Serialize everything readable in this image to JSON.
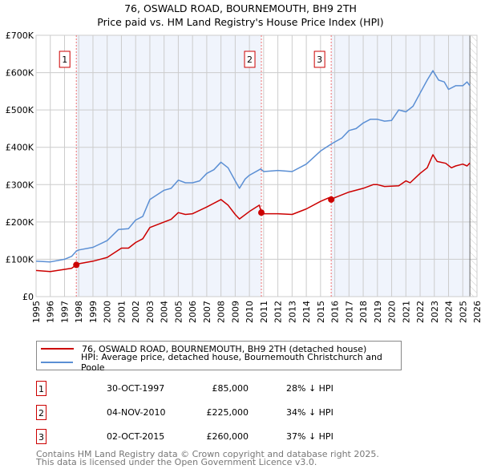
{
  "title_line1": "76, OSWALD ROAD, BOURNEMOUTH, BH9 2TH",
  "title_line2": "Price paid vs. HM Land Registry's House Price Index (HPI)",
  "chart_data": {
    "type": "line",
    "title": "76, OSWALD ROAD, BOURNEMOUTH, BH9 2TH — Price paid vs. HM Land Registry's House Price Index (HPI)",
    "xlim": [
      1995,
      2026
    ],
    "ylim": [
      0,
      700000
    ],
    "x_ticks": [
      "1995",
      "1996",
      "1997",
      "1998",
      "1999",
      "2000",
      "2001",
      "2002",
      "2003",
      "2004",
      "2005",
      "2006",
      "2007",
      "2008",
      "2009",
      "2010",
      "2011",
      "2012",
      "2013",
      "2014",
      "2015",
      "2016",
      "2017",
      "2018",
      "2019",
      "2020",
      "2021",
      "2022",
      "2023",
      "2024",
      "2025",
      "2026"
    ],
    "y_ticks": [
      {
        "v": 0,
        "label": "£0"
      },
      {
        "v": 100000,
        "label": "£100K"
      },
      {
        "v": 200000,
        "label": "£200K"
      },
      {
        "v": 300000,
        "label": "£300K"
      },
      {
        "v": 400000,
        "label": "£400K"
      },
      {
        "v": 500000,
        "label": "£500K"
      },
      {
        "v": 600000,
        "label": "£600K"
      },
      {
        "v": 700000,
        "label": "£700K"
      }
    ],
    "grid": true,
    "series": [
      {
        "name": "76, OSWALD ROAD, BOURNEMOUTH, BH9 2TH (detached house)",
        "color": "#cc0000",
        "x": [
          1995,
          1996,
          1997,
          1997.5,
          1997.83,
          1998,
          1999,
          2000,
          2001,
          2001.5,
          2002,
          2002.5,
          2003,
          2004,
          2004.5,
          2005,
          2005.5,
          2006,
          2007,
          2008,
          2008.5,
          2009,
          2009.3,
          2010,
          2010.7,
          2010.84,
          2011,
          2012,
          2013,
          2014,
          2015,
          2015.6,
          2015.75,
          2016,
          2017,
          2018,
          2018.7,
          2019,
          2019.5,
          2020.5,
          2021,
          2021.3,
          2022,
          2022.5,
          2022.9,
          2023.2,
          2023.8,
          2024.2,
          2024.5,
          2025,
          2025.3,
          2025.5
        ],
        "values": [
          70000,
          67000,
          73000,
          76000,
          85000,
          88000,
          95000,
          105000,
          130000,
          130000,
          145000,
          155000,
          185000,
          200000,
          207000,
          225000,
          220000,
          222000,
          240000,
          260000,
          245000,
          220000,
          208000,
          228000,
          245000,
          225000,
          222000,
          222000,
          220000,
          235000,
          255000,
          265000,
          260000,
          265000,
          280000,
          290000,
          300000,
          300000,
          295000,
          297000,
          310000,
          305000,
          330000,
          345000,
          380000,
          362000,
          357000,
          345000,
          350000,
          355000,
          350000,
          358000
        ]
      },
      {
        "name": "HPI: Average price, detached house, Bournemouth Christchurch and Poole",
        "color": "#5b8fd4",
        "x": [
          1995,
          1996,
          1997,
          1997.5,
          1997.83,
          1998,
          1999,
          2000,
          2000.8,
          2001.5,
          2002,
          2002.5,
          2003,
          2004,
          2004.5,
          2005,
          2005.5,
          2006,
          2006.5,
          2007,
          2007.5,
          2008,
          2008.5,
          2009,
          2009.3,
          2009.7,
          2010,
          2010.8,
          2011,
          2012,
          2013,
          2014,
          2015,
          2015.8,
          2016.5,
          2017,
          2017.5,
          2018,
          2018.5,
          2019,
          2019.5,
          2020,
          2020.5,
          2021,
          2021.5,
          2022,
          2022.5,
          2022.9,
          2023.3,
          2023.7,
          2024,
          2024.5,
          2025,
          2025.3,
          2025.5
        ],
        "values": [
          95000,
          93000,
          100000,
          108000,
          122000,
          125000,
          132000,
          150000,
          180000,
          182000,
          205000,
          215000,
          260000,
          285000,
          290000,
          312000,
          305000,
          305000,
          310000,
          330000,
          340000,
          360000,
          345000,
          310000,
          290000,
          315000,
          325000,
          342000,
          335000,
          338000,
          335000,
          355000,
          390000,
          410000,
          425000,
          445000,
          450000,
          465000,
          475000,
          475000,
          470000,
          472000,
          500000,
          495000,
          510000,
          545000,
          580000,
          605000,
          580000,
          575000,
          555000,
          565000,
          565000,
          575000,
          565000
        ]
      }
    ],
    "sales": [
      {
        "label": "1",
        "x": 1997.83,
        "value": 85000
      },
      {
        "label": "2",
        "x": 2010.84,
        "value": 225000
      },
      {
        "label": "3",
        "x": 2015.75,
        "value": 260000
      }
    ],
    "forecast_start": 2025.5
  },
  "legend": {
    "property": "76, OSWALD ROAD, BOURNEMOUTH, BH9 2TH (detached house)",
    "hpi": "HPI: Average price, detached house, Bournemouth Christchurch and Poole"
  },
  "transactions": [
    {
      "num": "1",
      "date": "30-OCT-1997",
      "price": "£85,000",
      "hpi": "28% ↓ HPI"
    },
    {
      "num": "2",
      "date": "04-NOV-2010",
      "price": "£225,000",
      "hpi": "34% ↓ HPI"
    },
    {
      "num": "3",
      "date": "02-OCT-2015",
      "price": "£260,000",
      "hpi": "37% ↓ HPI"
    }
  ],
  "footer": {
    "line1": "Contains HM Land Registry data © Crown copyright and database right 2025.",
    "line2": "This data is licensed under the Open Government Licence v3.0."
  }
}
